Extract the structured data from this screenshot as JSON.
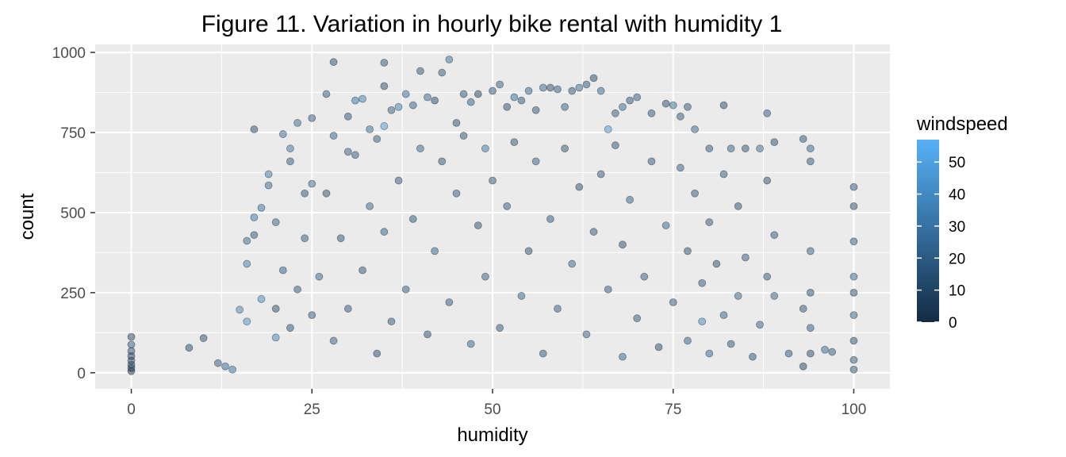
{
  "chart_data": {
    "type": "scatter",
    "title": "Figure 11. Variation in hourly bike rental with humidity 1",
    "xlabel": "humidity",
    "ylabel": "count",
    "xlim": [
      -5,
      105
    ],
    "ylim": [
      -50,
      1025
    ],
    "x_ticks": [
      0,
      25,
      50,
      75,
      100
    ],
    "y_ticks": [
      0,
      250,
      500,
      750,
      1000
    ],
    "grid": true,
    "point_alpha": 0.5,
    "legend": {
      "title": "windspeed",
      "placement": "right",
      "ticks": [
        0,
        10,
        20,
        30,
        40,
        50
      ],
      "range": [
        0,
        57
      ],
      "color_low": "#132B43",
      "color_high": "#56B1F7"
    },
    "series": [
      {
        "columns": [
          "humidity",
          "count",
          "windspeed"
        ],
        "points": [
          [
            0,
            5,
            0
          ],
          [
            0,
            15,
            6
          ],
          [
            0,
            25,
            11
          ],
          [
            0,
            38,
            13
          ],
          [
            0,
            52,
            8
          ],
          [
            0,
            68,
            15
          ],
          [
            0,
            88,
            19
          ],
          [
            0,
            112,
            9
          ],
          [
            8,
            78,
            13
          ],
          [
            10,
            108,
            15
          ],
          [
            12,
            30,
            20
          ],
          [
            13,
            20,
            26
          ],
          [
            14,
            10,
            30
          ],
          [
            15,
            197,
            40
          ],
          [
            16,
            340,
            35
          ],
          [
            16,
            412,
            26
          ],
          [
            16,
            160,
            44
          ],
          [
            17,
            760,
            13
          ],
          [
            17,
            430,
            19
          ],
          [
            17,
            485,
            33
          ],
          [
            18,
            515,
            30
          ],
          [
            18,
            230,
            41
          ],
          [
            19,
            620,
            35
          ],
          [
            19,
            585,
            27
          ],
          [
            20,
            470,
            22
          ],
          [
            20,
            110,
            38
          ],
          [
            21,
            745,
            26
          ],
          [
            22,
            700,
            31
          ],
          [
            22,
            660,
            20
          ],
          [
            23,
            780,
            26
          ],
          [
            24,
            560,
            17
          ],
          [
            25,
            590,
            26
          ],
          [
            25,
            795,
            20
          ],
          [
            27,
            870,
            19
          ],
          [
            28,
            970,
            15
          ],
          [
            28,
            740,
            23
          ],
          [
            30,
            800,
            17
          ],
          [
            30,
            690,
            22
          ],
          [
            31,
            850,
            30
          ],
          [
            32,
            855,
            37
          ],
          [
            33,
            760,
            28
          ],
          [
            34,
            730,
            20
          ],
          [
            35,
            895,
            15
          ],
          [
            35,
            770,
            49
          ],
          [
            35,
            968,
            18
          ],
          [
            36,
            820,
            22
          ],
          [
            37,
            830,
            37
          ],
          [
            38,
            870,
            28
          ],
          [
            39,
            835,
            22
          ],
          [
            40,
            942,
            17
          ],
          [
            41,
            860,
            26
          ],
          [
            42,
            850,
            13
          ],
          [
            43,
            937,
            20
          ],
          [
            44,
            978,
            28
          ],
          [
            45,
            780,
            15
          ],
          [
            46,
            870,
            17
          ],
          [
            47,
            845,
            22
          ],
          [
            48,
            870,
            11
          ],
          [
            49,
            700,
            33
          ],
          [
            50,
            880,
            17
          ],
          [
            51,
            900,
            22
          ],
          [
            52,
            830,
            15
          ],
          [
            53,
            860,
            28
          ],
          [
            54,
            850,
            19
          ],
          [
            55,
            880,
            24
          ],
          [
            56,
            820,
            17
          ],
          [
            57,
            890,
            26
          ],
          [
            58,
            890,
            15
          ],
          [
            59,
            885,
            20
          ],
          [
            60,
            830,
            22
          ],
          [
            61,
            880,
            17
          ],
          [
            62,
            890,
            28
          ],
          [
            63,
            900,
            19
          ],
          [
            64,
            920,
            13
          ],
          [
            65,
            880,
            24
          ],
          [
            66,
            760,
            45
          ],
          [
            67,
            810,
            20
          ],
          [
            68,
            830,
            26
          ],
          [
            69,
            850,
            17
          ],
          [
            70,
            860,
            22
          ],
          [
            72,
            810,
            19
          ],
          [
            74,
            840,
            15
          ],
          [
            75,
            835,
            28
          ],
          [
            76,
            800,
            20
          ],
          [
            77,
            830,
            17
          ],
          [
            78,
            760,
            24
          ],
          [
            80,
            700,
            19
          ],
          [
            82,
            835,
            13
          ],
          [
            83,
            700,
            22
          ],
          [
            85,
            700,
            17
          ],
          [
            87,
            700,
            28
          ],
          [
            88,
            810,
            20
          ],
          [
            89,
            720,
            15
          ],
          [
            93,
            730,
            17
          ],
          [
            94,
            700,
            24
          ],
          [
            94,
            660,
            19
          ],
          [
            96,
            72,
            26
          ],
          [
            97,
            65,
            20
          ],
          [
            100,
            580,
            17
          ],
          [
            100,
            520,
            15
          ],
          [
            100,
            410,
            19
          ],
          [
            100,
            300,
            24
          ],
          [
            100,
            250,
            13
          ],
          [
            100,
            180,
            22
          ],
          [
            100,
            100,
            15
          ],
          [
            100,
            40,
            20
          ],
          [
            100,
            10,
            17
          ],
          [
            94,
            380,
            22
          ],
          [
            94,
            250,
            13
          ],
          [
            94,
            140,
            20
          ],
          [
            94,
            60,
            15
          ],
          [
            93,
            200,
            17
          ],
          [
            93,
            20,
            11
          ],
          [
            91,
            60,
            19
          ],
          [
            89,
            240,
            24
          ],
          [
            89,
            430,
            17
          ],
          [
            88,
            600,
            15
          ],
          [
            88,
            300,
            19
          ],
          [
            87,
            150,
            22
          ],
          [
            86,
            50,
            17
          ],
          [
            85,
            360,
            20
          ],
          [
            84,
            520,
            15
          ],
          [
            84,
            240,
            24
          ],
          [
            83,
            90,
            17
          ],
          [
            82,
            620,
            19
          ],
          [
            82,
            180,
            22
          ],
          [
            81,
            340,
            15
          ],
          [
            80,
            470,
            17
          ],
          [
            80,
            60,
            24
          ],
          [
            79,
            160,
            40
          ],
          [
            79,
            280,
            19
          ],
          [
            78,
            560,
            17
          ],
          [
            77,
            380,
            15
          ],
          [
            77,
            100,
            22
          ],
          [
            76,
            640,
            20
          ],
          [
            75,
            220,
            17
          ],
          [
            74,
            460,
            24
          ],
          [
            73,
            80,
            15
          ],
          [
            72,
            660,
            19
          ],
          [
            71,
            300,
            20
          ],
          [
            70,
            170,
            17
          ],
          [
            69,
            540,
            22
          ],
          [
            68,
            400,
            15
          ],
          [
            68,
            50,
            24
          ],
          [
            67,
            710,
            17
          ],
          [
            66,
            260,
            20
          ],
          [
            65,
            620,
            19
          ],
          [
            64,
            440,
            17
          ],
          [
            63,
            120,
            22
          ],
          [
            62,
            580,
            15
          ],
          [
            61,
            340,
            24
          ],
          [
            60,
            700,
            17
          ],
          [
            59,
            200,
            20
          ],
          [
            58,
            480,
            19
          ],
          [
            57,
            60,
            17
          ],
          [
            56,
            660,
            22
          ],
          [
            55,
            380,
            15
          ],
          [
            54,
            240,
            24
          ],
          [
            53,
            720,
            17
          ],
          [
            52,
            520,
            20
          ],
          [
            51,
            140,
            19
          ],
          [
            50,
            600,
            17
          ],
          [
            49,
            300,
            22
          ],
          [
            48,
            460,
            15
          ],
          [
            47,
            90,
            24
          ],
          [
            46,
            740,
            17
          ],
          [
            45,
            560,
            20
          ],
          [
            44,
            220,
            19
          ],
          [
            43,
            660,
            17
          ],
          [
            42,
            380,
            22
          ],
          [
            41,
            120,
            15
          ],
          [
            40,
            700,
            24
          ],
          [
            39,
            480,
            17
          ],
          [
            38,
            260,
            20
          ],
          [
            37,
            600,
            19
          ],
          [
            36,
            160,
            17
          ],
          [
            35,
            440,
            22
          ],
          [
            34,
            60,
            15
          ],
          [
            33,
            520,
            24
          ],
          [
            32,
            320,
            17
          ],
          [
            31,
            680,
            20
          ],
          [
            30,
            200,
            19
          ],
          [
            29,
            420,
            17
          ],
          [
            28,
            100,
            22
          ],
          [
            27,
            560,
            15
          ],
          [
            26,
            300,
            24
          ],
          [
            25,
            180,
            17
          ],
          [
            24,
            420,
            20
          ],
          [
            23,
            260,
            19
          ],
          [
            22,
            140,
            17
          ],
          [
            21,
            320,
            22
          ],
          [
            20,
            200,
            15
          ]
        ]
      }
    ]
  }
}
